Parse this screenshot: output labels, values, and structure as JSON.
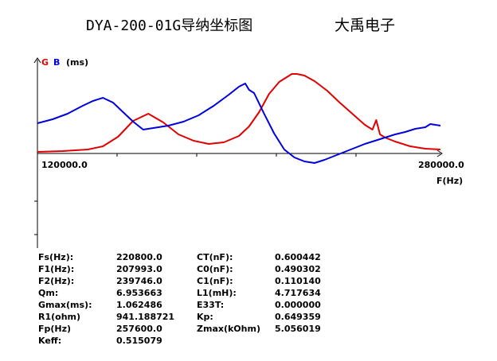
{
  "title": "DYA-200-01G导纳坐标图",
  "brand": "大禹电子",
  "chart_data": {
    "type": "line",
    "legend": [
      "G",
      "B",
      "(ms)"
    ],
    "xlabel": "F(Hz)",
    "xlim": [
      120000.0,
      280000.0
    ],
    "x_tick_labels": [
      "120000.0",
      "280000.0"
    ],
    "grid": false,
    "series": [
      {
        "name": "G",
        "color": "#e00000",
        "x": [
          120000,
          130000,
          140000,
          146000,
          152000,
          158000,
          164000,
          170000,
          176000,
          182000,
          188000,
          194000,
          200000,
          204000,
          208000,
          212000,
          216000,
          219000,
          221000,
          223000,
          226000,
          230000,
          235000,
          240000,
          245000,
          250000,
          253000,
          254500,
          256000,
          258000,
          262000,
          268000,
          274000,
          280000
        ],
        "y": [
          0.02,
          0.03,
          0.05,
          0.09,
          0.21,
          0.41,
          0.5,
          0.39,
          0.24,
          0.16,
          0.12,
          0.14,
          0.22,
          0.34,
          0.52,
          0.75,
          0.9,
          0.96,
          1.0,
          1.0,
          0.98,
          0.91,
          0.79,
          0.64,
          0.5,
          0.36,
          0.3,
          0.42,
          0.24,
          0.2,
          0.15,
          0.09,
          0.06,
          0.05
        ]
      },
      {
        "name": "B",
        "color": "#0000dd",
        "x": [
          120000,
          126000,
          132000,
          138000,
          142000,
          146000,
          150000,
          154000,
          158000,
          162000,
          166000,
          172000,
          178000,
          184000,
          190000,
          196000,
          200000,
          202500,
          204000,
          206000,
          210000,
          214000,
          218000,
          222000,
          226000,
          230000,
          234000,
          238000,
          242000,
          246000,
          250000,
          254000,
          258000,
          262000,
          266000,
          270000,
          274000,
          276000,
          278000,
          280000
        ],
        "y": [
          0.38,
          0.43,
          0.5,
          0.6,
          0.66,
          0.7,
          0.64,
          0.52,
          0.4,
          0.3,
          0.32,
          0.35,
          0.4,
          0.48,
          0.6,
          0.74,
          0.84,
          0.88,
          0.8,
          0.76,
          0.5,
          0.25,
          0.05,
          -0.05,
          -0.1,
          -0.12,
          -0.08,
          -0.03,
          0.02,
          0.07,
          0.12,
          0.16,
          0.2,
          0.24,
          0.27,
          0.31,
          0.33,
          0.37,
          0.36,
          0.35
        ]
      }
    ]
  },
  "parameters": {
    "col_a": [
      {
        "label": "Fs(Hz):",
        "value": "220800.0"
      },
      {
        "label": "F1(Hz):",
        "value": "207993.0"
      },
      {
        "label": "F2(Hz):",
        "value": "239746.0"
      },
      {
        "label": "Qm:",
        "value": "6.953663"
      },
      {
        "label": "Gmax(ms):",
        "value": "1.062486"
      },
      {
        "label": "R1(ohm)",
        "value": "941.188721"
      },
      {
        "label": "Fp(Hz)",
        "value": "257600.0"
      },
      {
        "label": "Keff:",
        "value": "0.515079"
      }
    ],
    "col_b": [
      {
        "label": "CT(nF):",
        "value": "0.600442"
      },
      {
        "label": "C0(nF):",
        "value": "0.490302"
      },
      {
        "label": "C1(nF):",
        "value": "0.110140"
      },
      {
        "label": "L1(mH):",
        "value": "4.717634"
      },
      {
        "label": "E33T:",
        "value": "0.000000"
      },
      {
        "label": "Kp:",
        "value": "0.649359"
      },
      {
        "label": "Zmax(kOhm)",
        "value": "5.056019"
      }
    ]
  }
}
